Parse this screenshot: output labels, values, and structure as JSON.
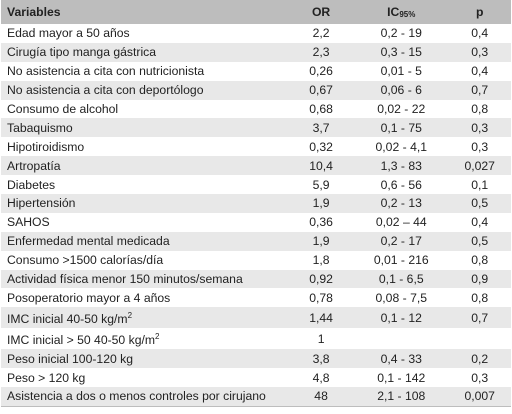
{
  "headers": {
    "variable": "Variables",
    "or": "OR",
    "ic_main": "IC",
    "ic_sub": "95%",
    "p": "p"
  },
  "rows": [
    {
      "variable": "Edad mayor a 50 años",
      "or": "2,2",
      "ic": "0,2 - 19",
      "p": "0,4"
    },
    {
      "variable": "Cirugía tipo manga gástrica",
      "or": "2,3",
      "ic": "0,3 - 15",
      "p": "0,3"
    },
    {
      "variable": "No asistencia a cita con nutricionista",
      "or": "0,26",
      "ic": "0,01 - 5",
      "p": "0,4"
    },
    {
      "variable": "No asistencia a cita con deportólogo",
      "or": "0,67",
      "ic": "0,06 - 6",
      "p": "0,7"
    },
    {
      "variable": "Consumo de alcohol",
      "or": "0,68",
      "ic": "0,02 - 22",
      "p": "0,8"
    },
    {
      "variable": "Tabaquismo",
      "or": "3,7",
      "ic": "0,1 - 75",
      "p": "0,3"
    },
    {
      "variable": "Hipotiroidismo",
      "or": "0,32",
      "ic": "0,02 - 4,1",
      "p": "0,3"
    },
    {
      "variable": "Artropatía",
      "or": "10,4",
      "ic": "1,3 - 83",
      "p": "0,027"
    },
    {
      "variable": "Diabetes",
      "or": "5,9",
      "ic": "0,6 - 56",
      "p": "0,1"
    },
    {
      "variable": "Hipertensión",
      "or": "1,9",
      "ic": "0,2 - 13",
      "p": "0,5"
    },
    {
      "variable": "SAHOS",
      "or": "0,36",
      "ic": "0,02 – 44",
      "p": "0,4"
    },
    {
      "variable": "Enfermedad mental medicada",
      "or": "1,9",
      "ic": "0,2 - 17",
      "p": "0,5"
    },
    {
      "variable": "Consumo >1500 calorías/día",
      "or": "1,8",
      "ic": "0,01 - 216",
      "p": "0,8"
    },
    {
      "variable": "Actividad física menor 150 minutos/semana",
      "or": "0,92",
      "ic": "0,1 - 6,5",
      "p": "0,9"
    },
    {
      "variable": "Posoperatorio mayor a 4 años",
      "or": "0,78",
      "ic": "0,08 - 7,5",
      "p": "0,8"
    },
    {
      "variable": "IMC inicial 40-50 kg/m",
      "sup": "2",
      "or": "1,44",
      "ic": "0,1 - 12",
      "p": "0,7"
    },
    {
      "variable": "IMC inicial > 50 40-50 kg/m",
      "sup": "2",
      "or": "1",
      "ic": "",
      "p": ""
    },
    {
      "variable": "Peso inicial 100-120 kg",
      "or": "3,8",
      "ic": "0,4 - 33",
      "p": "0,2"
    },
    {
      "variable": "Peso > 120 kg",
      "or": "4,8",
      "ic": "0,1 - 142",
      "p": "0,3"
    },
    {
      "variable": "Asistencia a dos o menos controles por cirujano",
      "or": "48",
      "ic": "2,1 - 108",
      "p": "0,007"
    }
  ]
}
